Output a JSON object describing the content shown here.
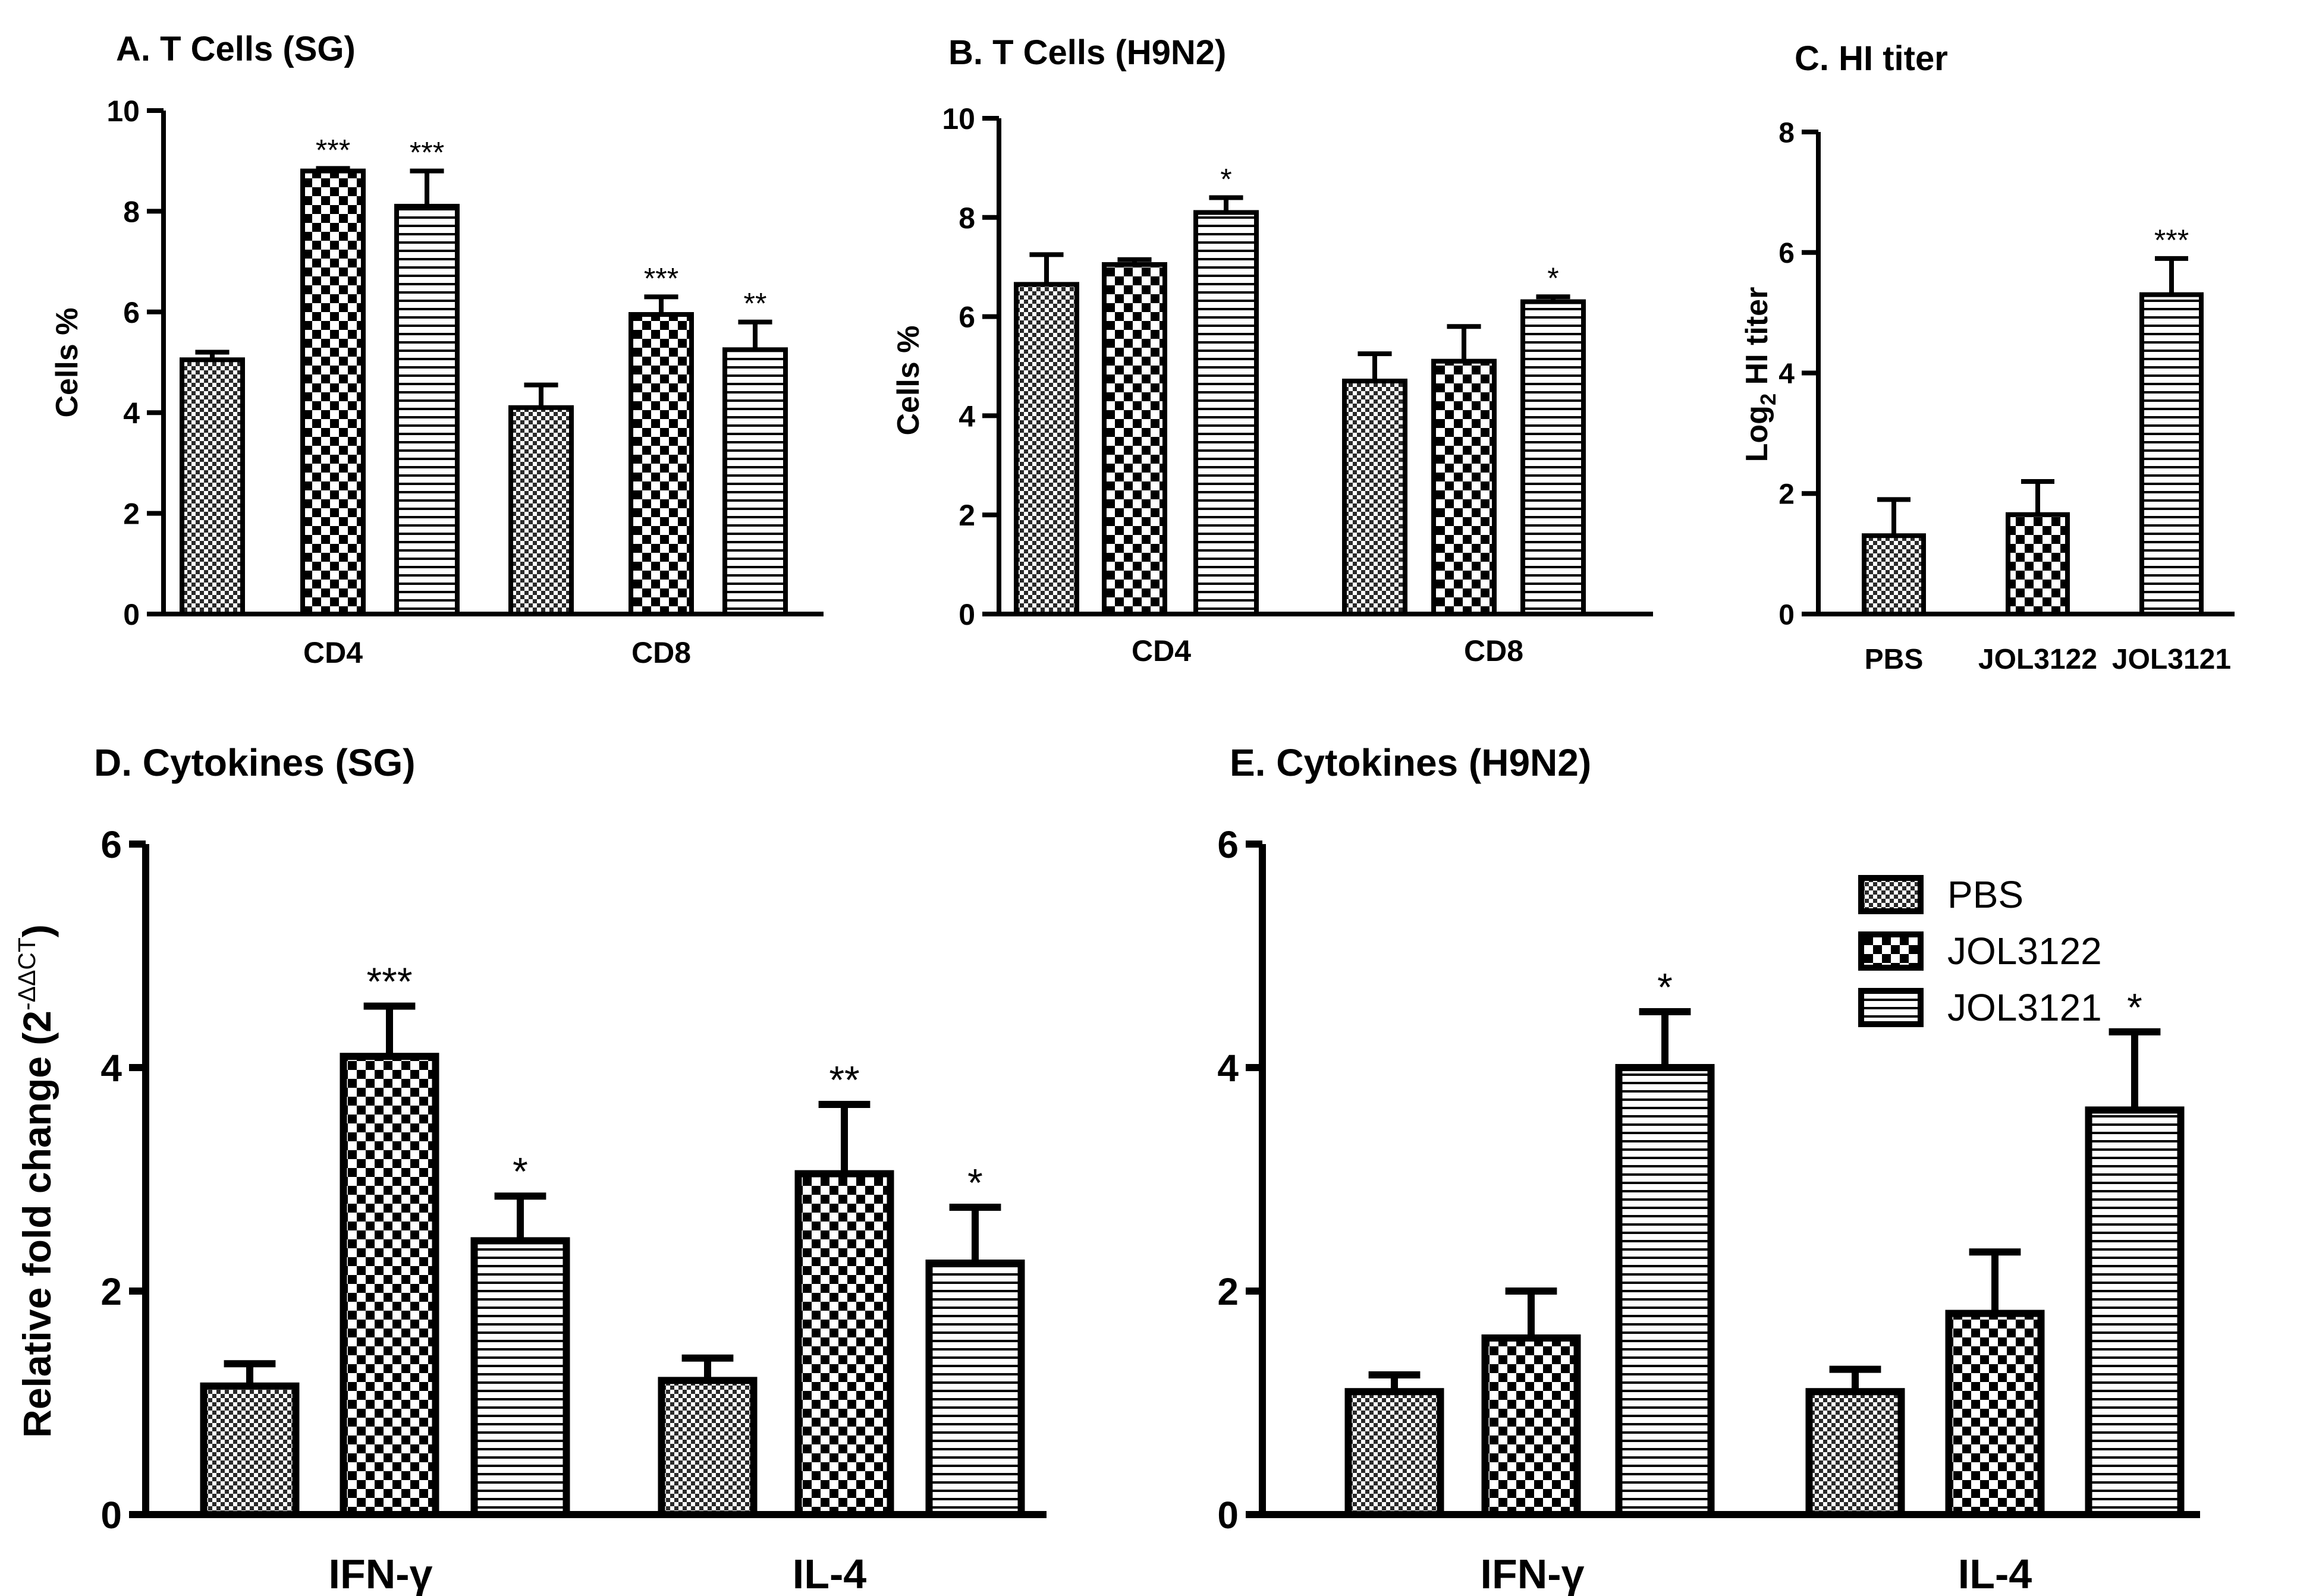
{
  "legend": {
    "items": [
      {
        "label": "PBS",
        "pattern": "fine-checker"
      },
      {
        "label": "JOL3122",
        "pattern": "coarse-checker"
      },
      {
        "label": "JOL3121",
        "pattern": "horizontal-stripes"
      }
    ]
  },
  "chart_data": [
    {
      "id": "A",
      "type": "bar",
      "title": "A. T Cells (SG)",
      "ylabel": "Cells %",
      "ylim": [
        0,
        10
      ],
      "yticks": [
        0,
        2,
        4,
        6,
        8,
        10
      ],
      "categories": [
        "CD4",
        "CD8"
      ],
      "series": [
        {
          "name": "PBS",
          "values": [
            5.05,
            4.1
          ],
          "errors": [
            0.15,
            0.45
          ],
          "stars": [
            "",
            ""
          ]
        },
        {
          "name": "JOL3122",
          "values": [
            8.8,
            5.95
          ],
          "errors": [
            0.05,
            0.35
          ],
          "stars": [
            "***",
            "***"
          ]
        },
        {
          "name": "JOL3121",
          "values": [
            8.1,
            5.25
          ],
          "errors": [
            0.7,
            0.55
          ],
          "stars": [
            "***",
            "**"
          ]
        }
      ]
    },
    {
      "id": "B",
      "type": "bar",
      "title": "B. T Cells (H9N2)",
      "ylabel": "Cells %",
      "ylim": [
        0,
        10
      ],
      "yticks": [
        0,
        2,
        4,
        6,
        8,
        10
      ],
      "categories": [
        "CD4",
        "CD8"
      ],
      "series": [
        {
          "name": "PBS",
          "values": [
            6.65,
            4.7
          ],
          "errors": [
            0.6,
            0.55
          ],
          "stars": [
            "",
            ""
          ]
        },
        {
          "name": "JOL3122",
          "values": [
            7.05,
            5.1
          ],
          "errors": [
            0.1,
            0.7
          ],
          "stars": [
            "",
            ""
          ]
        },
        {
          "name": "JOL3121",
          "values": [
            8.1,
            6.3
          ],
          "errors": [
            0.3,
            0.1
          ],
          "stars": [
            "*",
            "*"
          ]
        }
      ]
    },
    {
      "id": "C",
      "type": "bar",
      "title": "C. HI titer",
      "ylabel": "Log2 HI titer",
      "ylim": [
        0,
        8
      ],
      "yticks": [
        0,
        2,
        4,
        6,
        8
      ],
      "categories": [
        "PBS",
        "JOL3122",
        "JOL3121"
      ],
      "series": [
        {
          "name": "PBS",
          "values": [
            1.3,
            null,
            null
          ],
          "errors": [
            0.6,
            null,
            null
          ],
          "stars": [
            "",
            "",
            ""
          ]
        },
        {
          "name": "JOL3122",
          "values": [
            null,
            1.65,
            null
          ],
          "errors": [
            null,
            0.55,
            null
          ],
          "stars": [
            "",
            "",
            ""
          ]
        },
        {
          "name": "JOL3121",
          "values": [
            null,
            null,
            5.3
          ],
          "errors": [
            null,
            null,
            0.6
          ],
          "stars": [
            "",
            "",
            "***"
          ]
        }
      ]
    },
    {
      "id": "D",
      "type": "bar",
      "title": "D. Cytokines (SG)",
      "ylabel": "Relative fold change (2-ΔΔCT)",
      "ylim": [
        0,
        6
      ],
      "yticks": [
        0,
        2,
        4,
        6
      ],
      "categories": [
        "IFN-γ",
        "IL-4"
      ],
      "series": [
        {
          "name": "PBS",
          "values": [
            1.15,
            1.2
          ],
          "errors": [
            0.2,
            0.2
          ],
          "stars": [
            "",
            ""
          ]
        },
        {
          "name": "JOL3122",
          "values": [
            4.1,
            3.05
          ],
          "errors": [
            0.45,
            0.62
          ],
          "stars": [
            "***",
            "**"
          ]
        },
        {
          "name": "JOL3121",
          "values": [
            2.45,
            2.25
          ],
          "errors": [
            0.4,
            0.5
          ],
          "stars": [
            "*",
            "*"
          ]
        }
      ]
    },
    {
      "id": "E",
      "type": "bar",
      "title": "E. Cytokines (H9N2)",
      "ylabel": "",
      "ylim": [
        0,
        6
      ],
      "yticks": [
        0,
        2,
        4,
        6
      ],
      "categories": [
        "IFN-γ",
        "IL-4"
      ],
      "series": [
        {
          "name": "PBS",
          "values": [
            1.1,
            1.1
          ],
          "errors": [
            0.15,
            0.2
          ],
          "stars": [
            "",
            ""
          ]
        },
        {
          "name": "JOL3122",
          "values": [
            1.58,
            1.8
          ],
          "errors": [
            0.42,
            0.55
          ],
          "stars": [
            "",
            ""
          ]
        },
        {
          "name": "JOL3121",
          "values": [
            4.0,
            3.62
          ],
          "errors": [
            0.5,
            0.7
          ],
          "stars": [
            "*",
            "*"
          ]
        }
      ]
    }
  ]
}
